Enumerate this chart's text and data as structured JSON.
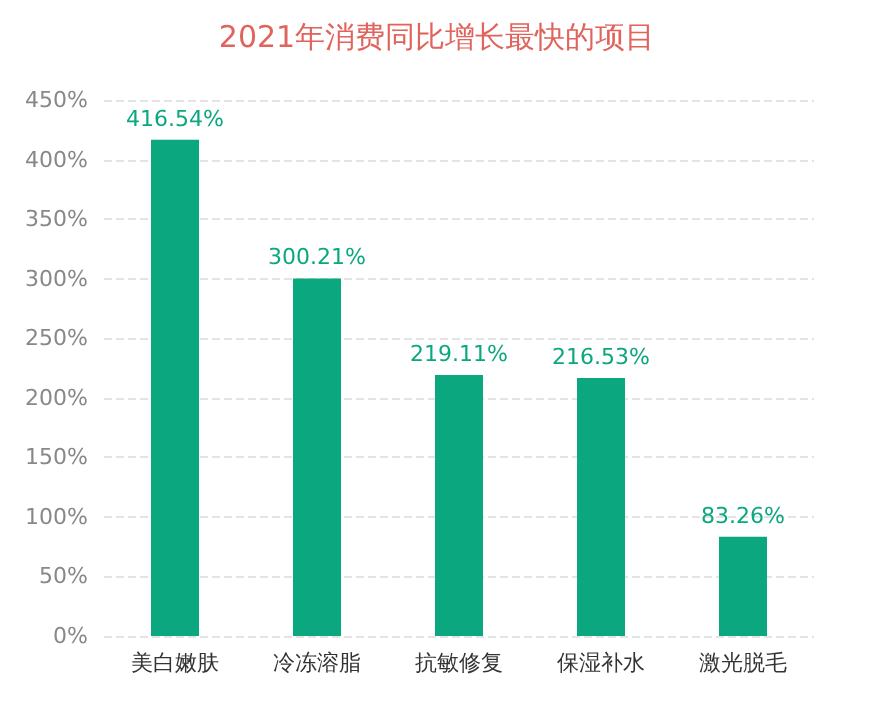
{
  "chart_data": {
    "type": "bar",
    "title": "2021年消费同比增长最快的项目",
    "categories": [
      "美白嫩肤",
      "冷冻溶脂",
      "抗敏修复",
      "保湿补水",
      "激光脱毛"
    ],
    "values": [
      416.54,
      300.21,
      219.11,
      216.53,
      83.26
    ],
    "value_labels": [
      "416.54%",
      "300.21%",
      "219.11%",
      "216.53%",
      "83.26%"
    ],
    "color": "#0ba77f",
    "ylim": [
      0,
      450
    ],
    "yticks": [
      {
        "value": 0,
        "label": "0%"
      },
      {
        "value": 50,
        "label": "50%"
      },
      {
        "value": 100,
        "label": "100%"
      },
      {
        "value": 150,
        "label": "150%"
      },
      {
        "value": 200,
        "label": "200%"
      },
      {
        "value": 250,
        "label": "250%"
      },
      {
        "value": 300,
        "label": "300%"
      },
      {
        "value": 350,
        "label": "350%"
      },
      {
        "value": 400,
        "label": "400%"
      },
      {
        "value": 450,
        "label": "450%"
      }
    ],
    "grid": "y"
  }
}
